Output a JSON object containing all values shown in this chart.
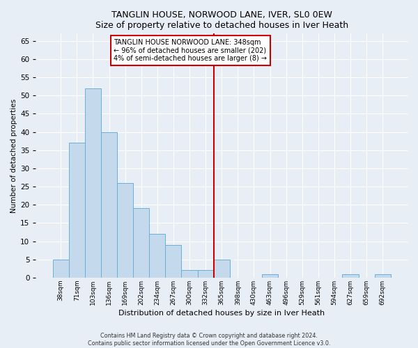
{
  "title1": "TANGLIN HOUSE, NORWOOD LANE, IVER, SL0 0EW",
  "title2": "Size of property relative to detached houses in Iver Heath",
  "xlabel": "Distribution of detached houses by size in Iver Heath",
  "ylabel": "Number of detached properties",
  "bar_labels": [
    "38sqm",
    "71sqm",
    "103sqm",
    "136sqm",
    "169sqm",
    "202sqm",
    "234sqm",
    "267sqm",
    "300sqm",
    "332sqm",
    "365sqm",
    "398sqm",
    "430sqm",
    "463sqm",
    "496sqm",
    "529sqm",
    "561sqm",
    "594sqm",
    "627sqm",
    "659sqm",
    "692sqm"
  ],
  "bar_values": [
    5,
    37,
    52,
    40,
    26,
    19,
    12,
    9,
    2,
    2,
    5,
    0,
    0,
    1,
    0,
    0,
    0,
    0,
    1,
    0,
    1
  ],
  "bar_color": "#c5d9ec",
  "bar_edgecolor": "#6aafd6",
  "vline_color": "#cc0000",
  "annotation_lines": [
    "TANGLIN HOUSE NORWOOD LANE: 348sqm",
    "← 96% of detached houses are smaller (202)",
    "4% of semi-detached houses are larger (8) →"
  ],
  "ylim": [
    0,
    67
  ],
  "yticks": [
    0,
    5,
    10,
    15,
    20,
    25,
    30,
    35,
    40,
    45,
    50,
    55,
    60,
    65
  ],
  "footer1": "Contains HM Land Registry data © Crown copyright and database right 2024.",
  "footer2": "Contains public sector information licensed under the Open Government Licence v3.0.",
  "background_color": "#e8eef5",
  "grid_color": "#ffffff"
}
